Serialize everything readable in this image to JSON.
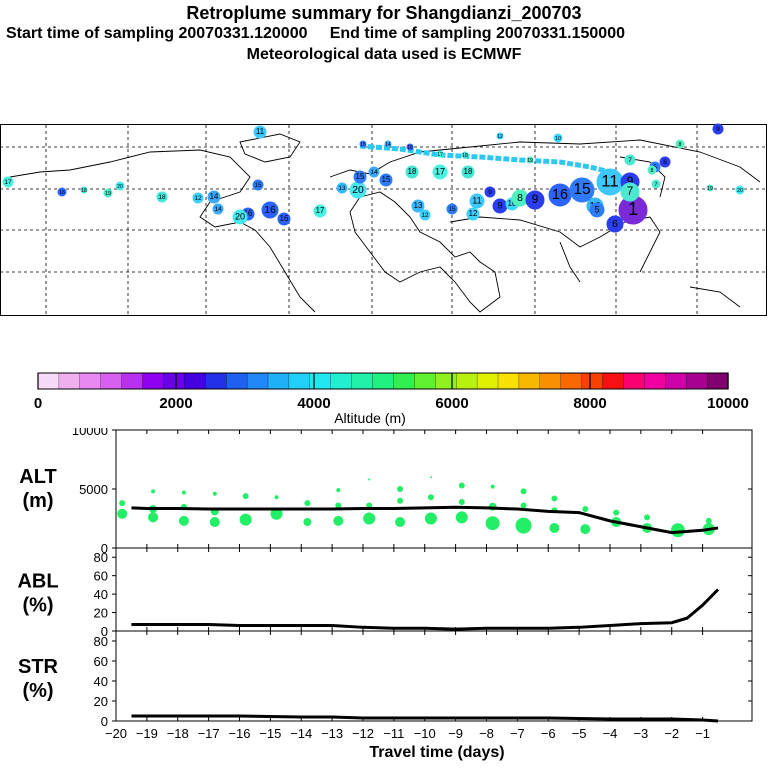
{
  "header": {
    "title": "Retroplume summary for Shangdianzi_200703",
    "start_label": "Start time of sampling 20070331.120000",
    "end_label": "End time of sampling 20070331.150000",
    "met_label": "Meteorological data used is ECMWF"
  },
  "map": {
    "description_clusters": [
      {
        "label": "11",
        "color": "#3ec8ff"
      },
      {
        "label": "15",
        "color": "#2f7bff"
      },
      {
        "label": "14",
        "color": "#3aa8ff"
      },
      {
        "label": "16",
        "color": "#2c63ff"
      },
      {
        "label": "9",
        "color": "#2a3df0"
      },
      {
        "label": "6",
        "color": "#2a3df0"
      },
      {
        "label": "13",
        "color": "#38b8ff"
      },
      {
        "label": "20",
        "color": "#45e8f0"
      },
      {
        "label": "17",
        "color": "#47f0e0"
      },
      {
        "label": "18",
        "color": "#44e6d8"
      },
      {
        "label": "12",
        "color": "#3ed0ff"
      },
      {
        "label": "10",
        "color": "#3ad8ff"
      },
      {
        "label": "5",
        "color": "#2f7bff"
      },
      {
        "label": "7",
        "color": "#4de8d0"
      },
      {
        "label": "8",
        "color": "#50f0c0"
      },
      {
        "label": "19",
        "color": "#4ce8c8"
      },
      {
        "label": "1",
        "color": "#7a2ad8"
      }
    ]
  },
  "colorbar": {
    "label": "Altitude (m)",
    "ticks": [
      "0",
      "2000",
      "4000",
      "6000",
      "8000",
      "10000"
    ],
    "colors": [
      "#f8d8f8",
      "#f0b0f0",
      "#e888f0",
      "#d860f0",
      "#b830f0",
      "#9000f0",
      "#6a00e8",
      "#4400e0",
      "#2230e8",
      "#2060f0",
      "#2088f8",
      "#20b0f8",
      "#20d0f8",
      "#20e8f0",
      "#20f0d0",
      "#20f0a8",
      "#20f080",
      "#30f050",
      "#60f030",
      "#90f020",
      "#b8f010",
      "#e0f000",
      "#f8e000",
      "#f8b800",
      "#f89000",
      "#f86800",
      "#f84000",
      "#f81010",
      "#f80070",
      "#f000a0",
      "#d000a8",
      "#a80090",
      "#800070"
    ]
  },
  "chart_data": [
    {
      "type": "scatter",
      "panel": "ALT (m)",
      "ylabel_line1": "ALT",
      "ylabel_line2": "(m)",
      "ylim": [
        0,
        10000
      ],
      "yticks": [
        "0",
        "5000",
        "10000"
      ],
      "xlim": [
        -20,
        0
      ],
      "median_line": {
        "x": [
          -19.5,
          -19,
          -18,
          -17,
          -16,
          -15,
          -14,
          -13,
          -12,
          -11,
          -10,
          -9,
          -8,
          -7,
          -6,
          -5,
          -4,
          -3,
          -2,
          -1,
          -0.5
        ],
        "y": [
          3400,
          3350,
          3350,
          3300,
          3300,
          3300,
          3300,
          3300,
          3350,
          3350,
          3400,
          3450,
          3400,
          3300,
          3100,
          3000,
          2300,
          1800,
          1300,
          1500,
          1700
        ]
      },
      "points": [
        {
          "x": -19.8,
          "y": 3800,
          "r": 3
        },
        {
          "x": -19.8,
          "y": 2900,
          "r": 5
        },
        {
          "x": -18.8,
          "y": 4800,
          "r": 2
        },
        {
          "x": -18.8,
          "y": 3300,
          "r": 4
        },
        {
          "x": -18.8,
          "y": 2600,
          "r": 5
        },
        {
          "x": -17.8,
          "y": 4700,
          "r": 2
        },
        {
          "x": -17.8,
          "y": 3500,
          "r": 3
        },
        {
          "x": -17.8,
          "y": 2300,
          "r": 5
        },
        {
          "x": -16.8,
          "y": 4600,
          "r": 2
        },
        {
          "x": -16.8,
          "y": 3100,
          "r": 4
        },
        {
          "x": -16.8,
          "y": 2200,
          "r": 5
        },
        {
          "x": -15.8,
          "y": 4400,
          "r": 3
        },
        {
          "x": -15.8,
          "y": 2400,
          "r": 6
        },
        {
          "x": -14.8,
          "y": 4300,
          "r": 2
        },
        {
          "x": -14.8,
          "y": 2900,
          "r": 6
        },
        {
          "x": -13.8,
          "y": 3800,
          "r": 3
        },
        {
          "x": -13.8,
          "y": 2200,
          "r": 4
        },
        {
          "x": -12.8,
          "y": 4900,
          "r": 2
        },
        {
          "x": -12.8,
          "y": 3600,
          "r": 3
        },
        {
          "x": -12.8,
          "y": 2300,
          "r": 5
        },
        {
          "x": -11.8,
          "y": 5800,
          "r": 1
        },
        {
          "x": -11.8,
          "y": 3600,
          "r": 3
        },
        {
          "x": -11.8,
          "y": 2500,
          "r": 6
        },
        {
          "x": -10.8,
          "y": 5000,
          "r": 3
        },
        {
          "x": -10.8,
          "y": 4000,
          "r": 3
        },
        {
          "x": -10.8,
          "y": 2200,
          "r": 5
        },
        {
          "x": -9.8,
          "y": 6000,
          "r": 1
        },
        {
          "x": -9.8,
          "y": 4300,
          "r": 3
        },
        {
          "x": -9.8,
          "y": 2500,
          "r": 6
        },
        {
          "x": -8.8,
          "y": 5300,
          "r": 3
        },
        {
          "x": -8.8,
          "y": 3900,
          "r": 3
        },
        {
          "x": -8.8,
          "y": 2600,
          "r": 6
        },
        {
          "x": -7.8,
          "y": 5200,
          "r": 2
        },
        {
          "x": -7.8,
          "y": 3500,
          "r": 4
        },
        {
          "x": -7.8,
          "y": 2100,
          "r": 7
        },
        {
          "x": -6.8,
          "y": 4800,
          "r": 3
        },
        {
          "x": -6.8,
          "y": 3600,
          "r": 3
        },
        {
          "x": -6.8,
          "y": 1900,
          "r": 8
        },
        {
          "x": -5.8,
          "y": 4200,
          "r": 3
        },
        {
          "x": -5.8,
          "y": 3200,
          "r": 3
        },
        {
          "x": -5.8,
          "y": 1700,
          "r": 5
        },
        {
          "x": -4.8,
          "y": 3300,
          "r": 3
        },
        {
          "x": -4.8,
          "y": 1600,
          "r": 5
        },
        {
          "x": -3.8,
          "y": 3000,
          "r": 3
        },
        {
          "x": -3.8,
          "y": 2200,
          "r": 5
        },
        {
          "x": -2.8,
          "y": 2600,
          "r": 3
        },
        {
          "x": -2.8,
          "y": 1700,
          "r": 5
        },
        {
          "x": -1.8,
          "y": 1500,
          "r": 7
        },
        {
          "x": -0.8,
          "y": 2300,
          "r": 3
        },
        {
          "x": -0.8,
          "y": 1600,
          "r": 6
        }
      ]
    },
    {
      "type": "line",
      "panel": "ABL (%)",
      "ylabel_line1": "ABL",
      "ylabel_line2": "(%)",
      "ylim": [
        0,
        90
      ],
      "yticks": [
        "0",
        "20",
        "40",
        "60",
        "80"
      ],
      "xlim": [
        -20,
        0
      ],
      "x": [
        -19.5,
        -19,
        -18,
        -17,
        -16,
        -15,
        -14,
        -13,
        -12,
        -11,
        -10,
        -9,
        -8,
        -7,
        -6,
        -5,
        -4,
        -3,
        -2,
        -1.5,
        -1,
        -0.5
      ],
      "y": [
        7,
        7,
        7,
        7,
        6,
        6,
        6,
        6,
        4,
        3,
        3,
        2,
        3,
        3,
        3,
        4,
        6,
        8,
        9,
        14,
        28,
        45
      ]
    },
    {
      "type": "line",
      "panel": "STR (%)",
      "ylabel_line1": "STR",
      "ylabel_line2": "(%)",
      "ylim": [
        0,
        90
      ],
      "yticks": [
        "0",
        "20",
        "40",
        "60",
        "80"
      ],
      "xlim": [
        -20,
        0
      ],
      "xlabel": "Travel time (days)",
      "xticks": [
        "-20",
        "-19",
        "-18",
        "-17",
        "-16",
        "-15",
        "-14",
        "-13",
        "-12",
        "-11",
        "-10",
        "-9",
        "-8",
        "-7",
        "-6",
        "-5",
        "-4",
        "-3",
        "-2",
        "-1"
      ],
      "x": [
        -19.5,
        -18,
        -16,
        -14,
        -13,
        -12,
        -10,
        -8,
        -6,
        -4,
        -2,
        -1,
        -0.5
      ],
      "y": [
        5,
        5,
        5,
        4,
        4,
        3,
        3,
        3,
        3,
        2,
        2,
        1,
        0
      ]
    }
  ]
}
